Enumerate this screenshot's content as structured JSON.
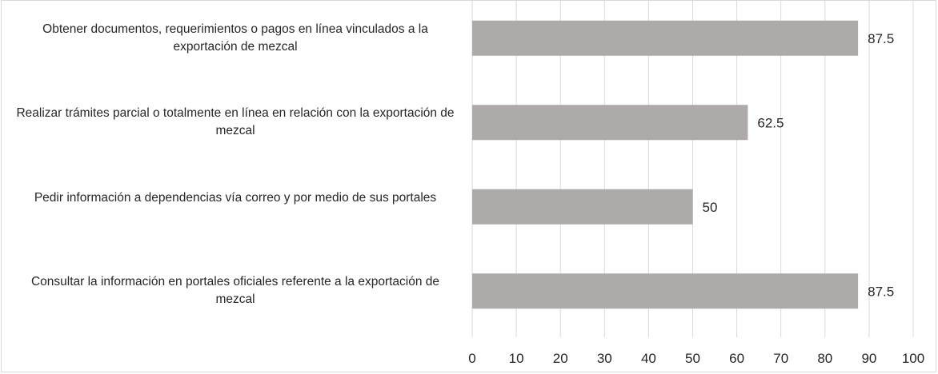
{
  "chart_data": {
    "type": "bar",
    "orientation": "horizontal",
    "categories": [
      "Obtener documentos, requerimientos o pagos en línea vinculados a la exportación de mezcal",
      "Realizar trámites parcial o totalmente en línea en relación con la exportación de mezcal",
      "Pedir información a dependencias vía correo y por medio de sus portales",
      "Consultar la información en portales oficiales referente a la exportación de mezcal"
    ],
    "values": [
      87.5,
      62.5,
      50,
      87.5
    ],
    "data_labels": [
      "87.5",
      "62.5",
      "50",
      "87.5"
    ],
    "xlim": [
      0,
      100
    ],
    "x_ticks": [
      0,
      10,
      20,
      30,
      40,
      50,
      60,
      70,
      80,
      90,
      100
    ],
    "x_tick_labels": [
      "0",
      "10",
      "20",
      "30",
      "40",
      "50",
      "60",
      "70",
      "80",
      "90",
      "100"
    ],
    "title": "",
    "xlabel": "",
    "ylabel": "",
    "grid": "vertical",
    "legend": "none",
    "colors": {
      "bar": "#aeaaaa",
      "grid": "#d9d9d9",
      "text": "#262626"
    }
  }
}
